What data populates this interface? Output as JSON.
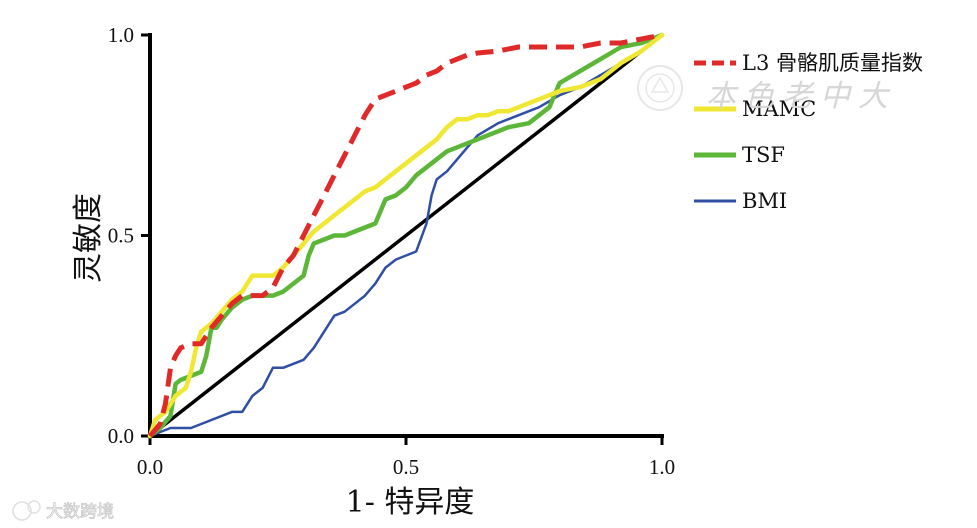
{
  "chart_data": {
    "type": "line",
    "xlabel": "1- 特异度",
    "ylabel": "灵敏度",
    "xlim": [
      0,
      1
    ],
    "ylim": [
      0,
      1
    ],
    "x_ticks": [
      "0.0",
      "0.5",
      "1.0"
    ],
    "y_ticks": [
      "0.0",
      "0.5",
      "1.0"
    ],
    "grid": false,
    "legend_position": "right",
    "series": [
      {
        "name": "L3 骨骼肌质量指数",
        "color": "#e02a2a",
        "style": "dashed",
        "x": [
          0,
          0.02,
          0.03,
          0.04,
          0.05,
          0.06,
          0.08,
          0.1,
          0.12,
          0.14,
          0.16,
          0.18,
          0.2,
          0.22,
          0.24,
          0.26,
          0.28,
          0.3,
          0.32,
          0.34,
          0.36,
          0.38,
          0.4,
          0.42,
          0.44,
          0.46,
          0.48,
          0.5,
          0.52,
          0.54,
          0.56,
          0.58,
          0.6,
          0.62,
          0.64,
          0.68,
          0.72,
          0.76,
          0.8,
          0.84,
          0.88,
          0.92,
          0.96,
          1.0
        ],
        "y": [
          0,
          0.03,
          0.08,
          0.17,
          0.2,
          0.22,
          0.23,
          0.23,
          0.27,
          0.3,
          0.33,
          0.35,
          0.35,
          0.35,
          0.37,
          0.42,
          0.45,
          0.5,
          0.55,
          0.6,
          0.65,
          0.7,
          0.75,
          0.8,
          0.84,
          0.85,
          0.86,
          0.87,
          0.88,
          0.9,
          0.91,
          0.93,
          0.94,
          0.95,
          0.955,
          0.96,
          0.97,
          0.97,
          0.97,
          0.97,
          0.98,
          0.98,
          0.99,
          1.0
        ]
      },
      {
        "name": "MAMC",
        "color": "#f0e732",
        "style": "solid",
        "x": [
          0,
          0.01,
          0.03,
          0.05,
          0.07,
          0.08,
          0.09,
          0.1,
          0.12,
          0.14,
          0.16,
          0.18,
          0.2,
          0.22,
          0.24,
          0.26,
          0.28,
          0.3,
          0.32,
          0.34,
          0.36,
          0.38,
          0.4,
          0.42,
          0.44,
          0.46,
          0.48,
          0.5,
          0.52,
          0.54,
          0.56,
          0.58,
          0.6,
          0.62,
          0.64,
          0.66,
          0.68,
          0.7,
          0.72,
          0.74,
          0.76,
          0.78,
          0.8,
          0.84,
          0.88,
          0.92,
          0.96,
          1.0
        ],
        "y": [
          0,
          0.04,
          0.06,
          0.1,
          0.12,
          0.16,
          0.22,
          0.26,
          0.28,
          0.31,
          0.34,
          0.36,
          0.4,
          0.4,
          0.4,
          0.42,
          0.45,
          0.48,
          0.51,
          0.53,
          0.55,
          0.57,
          0.59,
          0.61,
          0.62,
          0.64,
          0.66,
          0.68,
          0.7,
          0.72,
          0.74,
          0.77,
          0.79,
          0.79,
          0.8,
          0.8,
          0.81,
          0.81,
          0.82,
          0.83,
          0.84,
          0.85,
          0.86,
          0.87,
          0.89,
          0.93,
          0.96,
          1.0
        ]
      },
      {
        "name": "TSF",
        "color": "#5cb738",
        "style": "solid",
        "x": [
          0,
          0.02,
          0.04,
          0.05,
          0.06,
          0.08,
          0.1,
          0.11,
          0.12,
          0.13,
          0.14,
          0.16,
          0.18,
          0.2,
          0.22,
          0.24,
          0.26,
          0.28,
          0.3,
          0.31,
          0.32,
          0.34,
          0.36,
          0.38,
          0.4,
          0.42,
          0.44,
          0.46,
          0.48,
          0.5,
          0.52,
          0.54,
          0.56,
          0.58,
          0.6,
          0.62,
          0.64,
          0.66,
          0.7,
          0.74,
          0.76,
          0.78,
          0.8,
          0.84,
          0.88,
          0.92,
          0.96,
          1.0
        ],
        "y": [
          0,
          0.02,
          0.05,
          0.13,
          0.14,
          0.15,
          0.16,
          0.2,
          0.27,
          0.27,
          0.29,
          0.32,
          0.34,
          0.35,
          0.35,
          0.35,
          0.36,
          0.38,
          0.4,
          0.45,
          0.48,
          0.49,
          0.5,
          0.5,
          0.51,
          0.52,
          0.53,
          0.59,
          0.6,
          0.62,
          0.65,
          0.67,
          0.69,
          0.71,
          0.72,
          0.73,
          0.74,
          0.75,
          0.77,
          0.78,
          0.8,
          0.82,
          0.88,
          0.91,
          0.94,
          0.97,
          0.98,
          1.0
        ]
      },
      {
        "name": "BMI",
        "color": "#2f4fa3",
        "style": "solid",
        "x": [
          0,
          0.04,
          0.08,
          0.12,
          0.16,
          0.18,
          0.2,
          0.22,
          0.24,
          0.26,
          0.28,
          0.3,
          0.32,
          0.34,
          0.36,
          0.38,
          0.4,
          0.42,
          0.44,
          0.46,
          0.48,
          0.5,
          0.52,
          0.54,
          0.55,
          0.56,
          0.58,
          0.6,
          0.62,
          0.64,
          0.68,
          0.72,
          0.76,
          0.8,
          0.84,
          0.88,
          0.92,
          0.96,
          1.0
        ],
        "y": [
          0,
          0.02,
          0.02,
          0.04,
          0.06,
          0.06,
          0.1,
          0.12,
          0.17,
          0.17,
          0.18,
          0.19,
          0.22,
          0.26,
          0.3,
          0.31,
          0.33,
          0.35,
          0.38,
          0.42,
          0.44,
          0.45,
          0.46,
          0.53,
          0.6,
          0.64,
          0.66,
          0.69,
          0.72,
          0.75,
          0.78,
          0.8,
          0.82,
          0.85,
          0.87,
          0.9,
          0.93,
          0.96,
          1.0
        ]
      },
      {
        "name": "",
        "color": "#000000",
        "style": "solid",
        "reference": true,
        "x": [
          0,
          1
        ],
        "y": [
          0,
          1
        ]
      }
    ]
  },
  "watermarks": {
    "top_right": "本色老中大",
    "bottom_left": "大数跨境"
  }
}
